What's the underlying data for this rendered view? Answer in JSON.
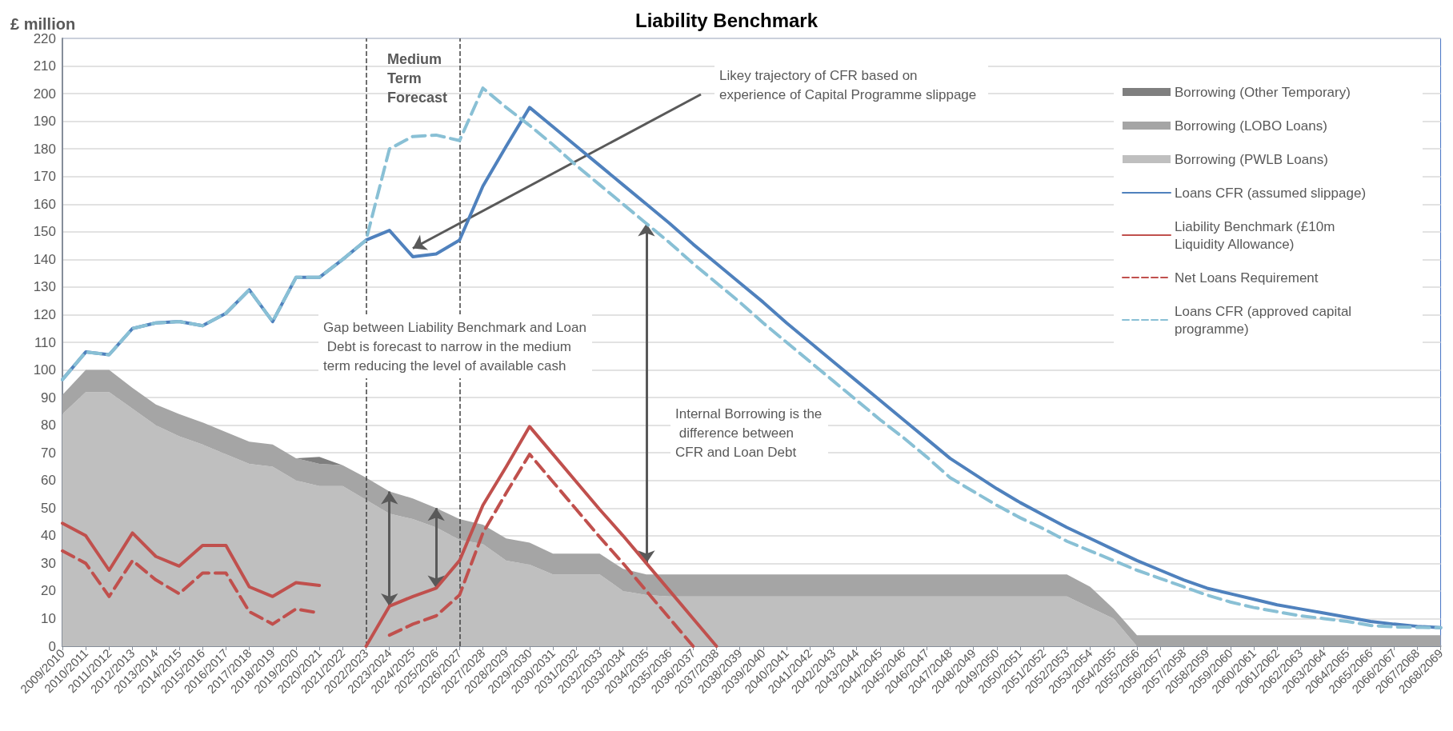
{
  "chart_data": {
    "type": "area",
    "title": "Liability Benchmark",
    "ylabel": "£ million",
    "stacked": true,
    "grid": "y",
    "legend": "right",
    "marker": "none",
    "categories": [
      "2009/2010",
      "2010/2011",
      "2011/2012",
      "2012/2013",
      "2013/2014",
      "2014/2015",
      "2015/2016",
      "2016/2017",
      "2017/2018",
      "2018/2019",
      "2019/2020",
      "2020/2021",
      "2021/2022",
      "2022/2023",
      "2023/2024",
      "2024/2025",
      "2025/2026",
      "2026/2027",
      "2027/2028",
      "2028/2029",
      "2029/2030",
      "2030/2031",
      "2031/2032",
      "2032/2033",
      "2033/2034",
      "2034/2035",
      "2035/2036",
      "2036/2037",
      "2037/2038",
      "2038/2039",
      "2039/2040",
      "2040/2041",
      "2041/2042",
      "2042/2043",
      "2043/2044",
      "2044/2045",
      "2045/2046",
      "2046/2047",
      "2047/2048",
      "2048/2049",
      "2049/2050",
      "2050/2051",
      "2051/2052",
      "2052/2053",
      "2053/2054",
      "2054/2055",
      "2055/2056",
      "2056/2057",
      "2057/2058",
      "2058/2059",
      "2059/2060",
      "2060/2061",
      "2061/2062",
      "2062/2063",
      "2063/2064",
      "2064/2065",
      "2065/2066",
      "2066/2067",
      "2067/2068",
      "2068/2069"
    ],
    "ylim": [
      0,
      220
    ],
    "yticks": [
      0,
      10,
      20,
      30,
      40,
      50,
      60,
      70,
      80,
      90,
      100,
      110,
      120,
      130,
      140,
      150,
      160,
      170,
      180,
      190,
      200,
      210,
      220
    ],
    "series": [
      {
        "name": "Borrowing (PWLB Loans)",
        "color": "#bfbfbf",
        "values": [
          84,
          92,
          92,
          86,
          80,
          76,
          73,
          69.5,
          66,
          65,
          60,
          58,
          58,
          53,
          48,
          46,
          43,
          38.5,
          37,
          31,
          29.5,
          26,
          26,
          26,
          20,
          18.5,
          18,
          18,
          18,
          18,
          18,
          18,
          18,
          18,
          18,
          18,
          18,
          18,
          18,
          18,
          18,
          18,
          18,
          18,
          14,
          10,
          0,
          0,
          0,
          0,
          0,
          0,
          0,
          0,
          0,
          0,
          0,
          0,
          0,
          0
        ]
      },
      {
        "name": "Borrowing (LOBO Loans)",
        "color": "#a5a5a5",
        "values": [
          7,
          8,
          8,
          7.5,
          7.5,
          8,
          8,
          8,
          8,
          8,
          8,
          8,
          7.5,
          8,
          8,
          7.5,
          7,
          7.5,
          7,
          8,
          8,
          7.5,
          7.5,
          7.5,
          8,
          7.5,
          8,
          8,
          8,
          8,
          8,
          8,
          8,
          8,
          8,
          8,
          8,
          8,
          8,
          8,
          8,
          8,
          8,
          8,
          7.5,
          3.5,
          4,
          4,
          4,
          4,
          4,
          4,
          4,
          4,
          4,
          4,
          4,
          4,
          4,
          4
        ]
      },
      {
        "name": "Borrowing (Other Temporary)",
        "color": "#7f7f7f",
        "values": [
          0,
          0,
          0,
          0,
          0,
          0,
          0,
          0,
          0,
          0,
          0,
          2.5,
          0,
          0,
          0,
          0,
          0,
          0,
          0,
          0,
          0,
          0,
          0,
          0,
          0,
          0,
          0,
          0,
          0,
          0,
          0,
          0,
          0,
          0,
          0,
          0,
          0,
          0,
          0,
          0,
          0,
          0,
          0,
          0,
          0,
          0,
          0,
          0,
          0,
          0,
          0,
          0,
          0,
          0,
          0,
          0,
          0,
          0,
          0,
          0
        ]
      },
      {
        "name": "Loans CFR (assumed slippage)",
        "type": "line",
        "color": "#4f81bd",
        "line_style": "solid",
        "values": [
          96.5,
          106.5,
          105.5,
          115,
          117,
          117.5,
          116,
          120.5,
          129,
          117.5,
          133.5,
          133.5,
          140,
          147,
          150.5,
          141,
          142,
          147,
          166.5,
          181,
          195,
          188,
          181,
          174,
          167,
          160,
          153,
          145.5,
          138.5,
          131.5,
          124.5,
          117,
          110,
          103,
          96,
          89,
          82,
          75,
          68,
          62.5,
          57,
          52,
          47.5,
          43,
          39,
          35,
          31,
          27.5,
          24,
          21,
          19,
          17,
          15,
          13.5,
          12,
          10.5,
          9,
          8,
          7.2,
          6.7
        ]
      },
      {
        "name": "Liability Benchmark (£10m Liquidity Allowance)",
        "type": "line",
        "color": "#c0504d",
        "line_style": "solid",
        "values": [
          44.5,
          40,
          27.5,
          41,
          32.5,
          29,
          36.5,
          36.5,
          21.5,
          18,
          23,
          22,
          null,
          0,
          14.5,
          18,
          21,
          31,
          51,
          65,
          79.5,
          69.5,
          59.5,
          49.5,
          40,
          30,
          20,
          10,
          0,
          null,
          null,
          null,
          null,
          null,
          null,
          null,
          null,
          null,
          null,
          null,
          null,
          null,
          null,
          null,
          null,
          null,
          null,
          null,
          null,
          null,
          null,
          null,
          null,
          null,
          null,
          null,
          null,
          null,
          null,
          null
        ]
      },
      {
        "name": "Net Loans Requirement",
        "type": "line",
        "color": "#c0504d",
        "line_style": "dashed",
        "values": [
          34.5,
          30,
          18,
          31,
          24,
          19,
          26.5,
          26.5,
          12.5,
          8,
          13.5,
          12,
          null,
          null,
          4,
          8,
          11,
          18.5,
          41,
          55.5,
          69.5,
          59.5,
          49.5,
          39.5,
          30,
          20,
          10,
          0,
          null,
          null,
          null,
          null,
          null,
          null,
          null,
          null,
          null,
          null,
          null,
          null,
          null,
          null,
          null,
          null,
          null,
          null,
          null,
          null,
          null,
          null,
          null,
          null,
          null,
          null,
          null,
          null,
          null,
          null,
          null,
          null
        ]
      },
      {
        "name": "Loans CFR (approved capital programme)",
        "type": "line",
        "color": "#89c0d5",
        "line_style": "dashed",
        "values": [
          96.5,
          106.5,
          105.5,
          115,
          117,
          117.5,
          116,
          120.5,
          129,
          117.5,
          133.5,
          133.5,
          140,
          147,
          180,
          184.5,
          185,
          183,
          202,
          195,
          188.5,
          181.5,
          174,
          167,
          160,
          153,
          146,
          138.5,
          131.5,
          124.5,
          117,
          110,
          103,
          96,
          89,
          82,
          75.5,
          68.5,
          61,
          56,
          51,
          46.5,
          42.5,
          38,
          34.5,
          31,
          27.5,
          24.5,
          21.5,
          18.5,
          16,
          14,
          12.5,
          11,
          10,
          9,
          7.5,
          7,
          6.8,
          6.7
        ]
      }
    ],
    "ref_lines": [
      {
        "axis": "x",
        "value": "2022/2023",
        "line_style": "dashed"
      },
      {
        "axis": "x",
        "value": "2026/2027",
        "line_style": "dashed"
      }
    ],
    "annotations": [
      "Medium Term Forecast",
      "Likey trajectory of CFR based on experience of Capital Programme slippage",
      "Gap between Liability Benchmark and Loan Debt is forecast to narrow in the medium term reducing the level of available cash",
      "Internal Borrowing is the difference between CFR and Loan Debt"
    ]
  }
}
